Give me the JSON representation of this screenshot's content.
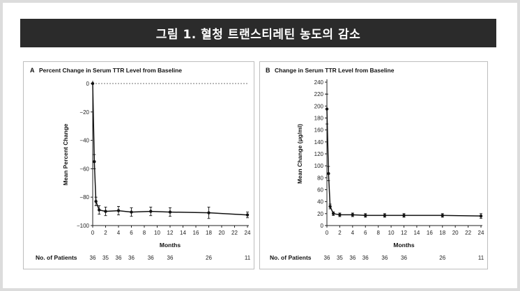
{
  "figure_title": "그림 1. 혈청 트랜스티레틴 농도의 감소",
  "patients_label": "No. of Patients",
  "chart_data": [
    {
      "panel": "A",
      "type": "line",
      "title": "Percent Change in Serum TTR Level from Baseline",
      "xlabel": "Months",
      "ylabel": "Mean Percent Change",
      "xlim": [
        0,
        24
      ],
      "ylim": [
        -100,
        0
      ],
      "x_ticks": [
        0,
        2,
        4,
        6,
        8,
        10,
        12,
        14,
        16,
        18,
        20,
        22,
        24
      ],
      "y_ticks": [
        0,
        -20,
        -40,
        -60,
        -80,
        -100
      ],
      "y_tick_labels": [
        "0",
        "−20",
        "−40",
        "−60",
        "−80",
        "−100"
      ],
      "baseline_reference": 0,
      "grid": false,
      "series": [
        {
          "x": [
            0,
            0.25,
            0.5,
            1,
            2,
            4,
            6,
            9,
            12,
            18,
            24
          ],
          "y": [
            0,
            -55,
            -83,
            -89,
            -90,
            -89.5,
            -90.5,
            -90,
            -90.5,
            -91,
            -92.5
          ],
          "error": [
            0,
            5,
            3,
            3,
            3,
            3,
            3,
            3,
            3,
            4,
            2
          ]
        }
      ],
      "patients": [
        {
          "x": 0,
          "n": "36"
        },
        {
          "x": 2,
          "n": "35"
        },
        {
          "x": 4,
          "n": "36"
        },
        {
          "x": 6,
          "n": "36"
        },
        {
          "x": 9,
          "n": "36"
        },
        {
          "x": 12,
          "n": "36"
        },
        {
          "x": 18,
          "n": "26"
        },
        {
          "x": 24,
          "n": "11"
        }
      ]
    },
    {
      "panel": "B",
      "type": "line",
      "title": "Change in Serum TTR Level from Baseline",
      "xlabel": "Months",
      "ylabel": "Mean Change (μg/ml)",
      "xlim": [
        0,
        24
      ],
      "ylim": [
        0,
        240
      ],
      "x_ticks": [
        0,
        2,
        4,
        6,
        8,
        10,
        12,
        14,
        16,
        18,
        20,
        22,
        24
      ],
      "y_ticks": [
        0,
        20,
        40,
        60,
        80,
        100,
        120,
        140,
        160,
        180,
        200,
        220,
        240
      ],
      "y_tick_labels": [
        "0",
        "20",
        "40",
        "60",
        "80",
        "100",
        "120",
        "140",
        "160",
        "180",
        "200",
        "220",
        "240"
      ],
      "grid": false,
      "series": [
        {
          "x": [
            0,
            0.25,
            0.5,
            1,
            2,
            4,
            6,
            9,
            12,
            18,
            24
          ],
          "y": [
            195,
            87,
            32,
            20,
            18,
            18,
            17,
            17,
            17,
            17,
            16
          ],
          "error": [
            25,
            12,
            4,
            3,
            3,
            3,
            3,
            3,
            3,
            3,
            4
          ]
        }
      ],
      "patients": [
        {
          "x": 0,
          "n": "36"
        },
        {
          "x": 2,
          "n": "35"
        },
        {
          "x": 4,
          "n": "36"
        },
        {
          "x": 6,
          "n": "36"
        },
        {
          "x": 9,
          "n": "36"
        },
        {
          "x": 12,
          "n": "36"
        },
        {
          "x": 18,
          "n": "26"
        },
        {
          "x": 24,
          "n": "11"
        }
      ]
    }
  ]
}
